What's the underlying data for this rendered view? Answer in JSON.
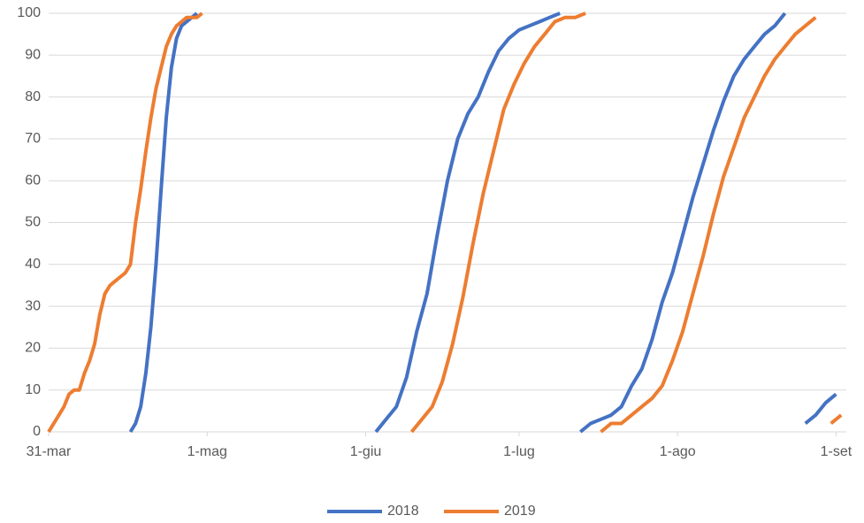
{
  "chart_data": {
    "type": "line",
    "xlim": [
      0,
      156
    ],
    "xticks": [
      {
        "value": 0,
        "label": "31-mar"
      },
      {
        "value": 31,
        "label": "1-mag"
      },
      {
        "value": 62,
        "label": "1-giu"
      },
      {
        "value": 92,
        "label": "1-lug"
      },
      {
        "value": 123,
        "label": "1-ago"
      },
      {
        "value": 154,
        "label": "1-set"
      }
    ],
    "ylim": [
      0,
      100
    ],
    "yticks": [
      0,
      10,
      20,
      30,
      40,
      50,
      60,
      70,
      80,
      90,
      100
    ],
    "grid": true,
    "legend": "bottom",
    "series": [
      {
        "name": "2018",
        "color": "#4472c4",
        "x": [
          16,
          17,
          18,
          19,
          20,
          21,
          22,
          23,
          24,
          25,
          26,
          27,
          28,
          29,
          null,
          64,
          66,
          68,
          70,
          72,
          74,
          76,
          78,
          80,
          82,
          84,
          86,
          88,
          90,
          92,
          94,
          96,
          98,
          100,
          null,
          104,
          106,
          108,
          110,
          112,
          114,
          116,
          118,
          120,
          122,
          124,
          126,
          128,
          130,
          132,
          134,
          136,
          138,
          140,
          142,
          144,
          null,
          148,
          150,
          152,
          154
        ],
        "values": [
          0,
          2,
          6,
          14,
          25,
          40,
          58,
          75,
          87,
          94,
          97,
          98,
          99,
          100,
          null,
          0,
          3,
          6,
          13,
          24,
          33,
          47,
          60,
          70,
          76,
          80,
          86,
          91,
          94,
          96,
          97,
          98,
          99,
          100,
          null,
          0,
          2,
          3,
          4,
          6,
          11,
          15,
          22,
          31,
          38,
          47,
          56,
          64,
          72,
          79,
          85,
          89,
          92,
          95,
          97,
          100,
          null,
          2,
          4,
          7,
          9
        ]
      },
      {
        "name": "2019",
        "color": "#ed7d31",
        "x": [
          0,
          1,
          2,
          3,
          4,
          5,
          6,
          7,
          8,
          9,
          10,
          11,
          12,
          13,
          14,
          15,
          16,
          17,
          18,
          19,
          20,
          21,
          22,
          23,
          24,
          25,
          26,
          27,
          28,
          29,
          30,
          null,
          71,
          73,
          75,
          77,
          79,
          81,
          83,
          85,
          87,
          89,
          91,
          93,
          95,
          97,
          99,
          101,
          103,
          105,
          null,
          108,
          110,
          112,
          114,
          116,
          118,
          120,
          122,
          124,
          126,
          128,
          130,
          132,
          134,
          136,
          138,
          140,
          142,
          144,
          146,
          148,
          150,
          null,
          153,
          155
        ],
        "values": [
          0,
          2,
          4,
          6,
          9,
          10,
          10,
          14,
          17,
          21,
          28,
          33,
          35,
          36,
          37,
          38,
          40,
          50,
          58,
          67,
          75,
          82,
          87,
          92,
          95,
          97,
          98,
          99,
          99,
          99,
          100,
          null,
          0,
          3,
          6,
          12,
          21,
          32,
          45,
          57,
          67,
          77,
          83,
          88,
          92,
          95,
          98,
          99,
          99,
          100,
          null,
          0,
          2,
          2,
          4,
          6,
          8,
          11,
          17,
          24,
          33,
          42,
          52,
          61,
          68,
          75,
          80,
          85,
          89,
          92,
          95,
          97,
          99,
          null,
          2,
          4
        ]
      }
    ]
  }
}
